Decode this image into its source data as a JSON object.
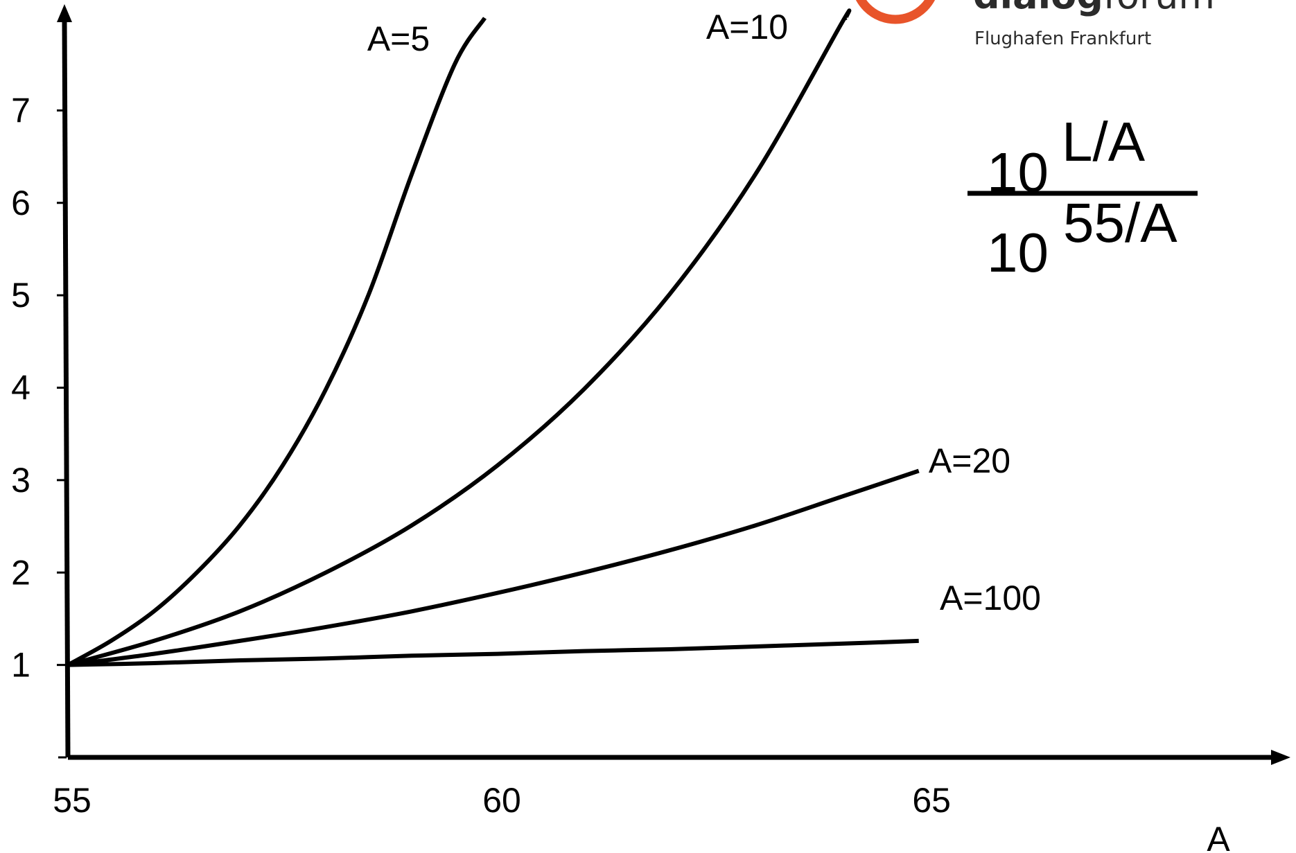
{
  "chart_data": {
    "type": "line",
    "xlabel": "A",
    "ylabel": "",
    "xlim": [
      55,
      69.2
    ],
    "ylim": [
      0,
      8
    ],
    "x_ticks": [
      55,
      60,
      65
    ],
    "y_ticks": [
      1,
      2,
      3,
      4,
      5,
      6,
      7
    ],
    "grid": false,
    "series": [
      {
        "name": "A=5",
        "points": [
          [
            55,
            1.0
          ],
          [
            55.5,
            1.26
          ],
          [
            56,
            1.58
          ],
          [
            56.5,
            2.0
          ],
          [
            57,
            2.51
          ],
          [
            57.5,
            3.16
          ],
          [
            58,
            3.98
          ],
          [
            58.5,
            5.01
          ],
          [
            59,
            6.31
          ],
          [
            59.5,
            7.5
          ],
          [
            59.85,
            8.0
          ]
        ]
      },
      {
        "name": "A=10",
        "points": [
          [
            55,
            1.0
          ],
          [
            56,
            1.26
          ],
          [
            57,
            1.58
          ],
          [
            58,
            2.0
          ],
          [
            59,
            2.51
          ],
          [
            60,
            3.16
          ],
          [
            61,
            3.98
          ],
          [
            62,
            5.01
          ],
          [
            63,
            6.31
          ],
          [
            64,
            7.94
          ],
          [
            64.05,
            8.0
          ]
        ]
      },
      {
        "name": "A=20",
        "points": [
          [
            55,
            1.0
          ],
          [
            56,
            1.12
          ],
          [
            57,
            1.26
          ],
          [
            58,
            1.41
          ],
          [
            59,
            1.58
          ],
          [
            60,
            1.78
          ],
          [
            61,
            2.0
          ],
          [
            62,
            2.24
          ],
          [
            63,
            2.51
          ],
          [
            64,
            2.82
          ],
          [
            64.9,
            3.1
          ]
        ]
      },
      {
        "name": "A=100",
        "points": [
          [
            55,
            1.0
          ],
          [
            56,
            1.02
          ],
          [
            57,
            1.05
          ],
          [
            58,
            1.07
          ],
          [
            59,
            1.1
          ],
          [
            60,
            1.12
          ],
          [
            61,
            1.15
          ],
          [
            62,
            1.17
          ],
          [
            63,
            1.2
          ],
          [
            64,
            1.23
          ],
          [
            64.9,
            1.26
          ]
        ]
      }
    ],
    "annotations": {
      "formula": {
        "numerator_base": "10",
        "numerator_exponent": "L/A",
        "denominator_base": "10",
        "denominator_exponent": "55/A"
      }
    }
  },
  "logo": {
    "wordmark_bold": "dialog",
    "wordmark_light": "forum",
    "subtitle": "Flughafen Frankfurt",
    "ring_color": "#e8542a",
    "inner_color": "#1f6fb5"
  }
}
